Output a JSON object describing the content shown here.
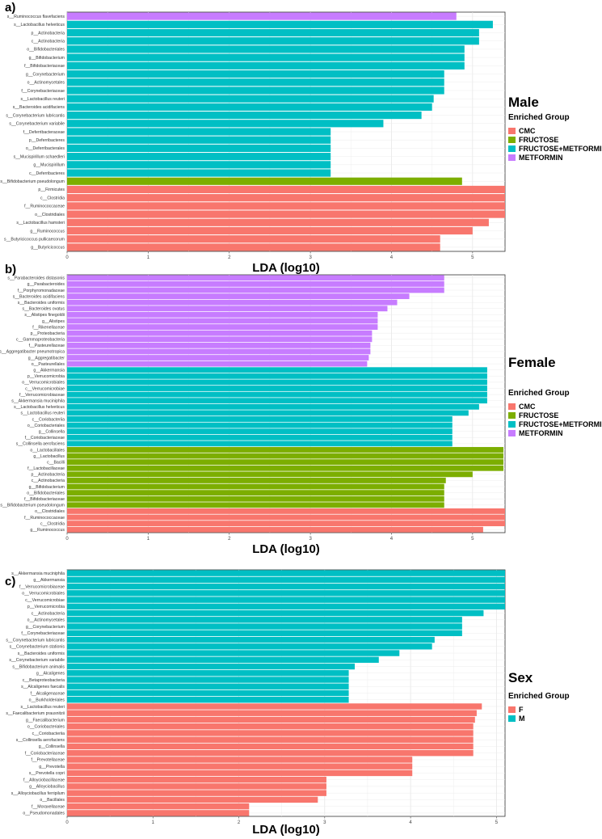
{
  "colors": {
    "CMC": "#F8766D",
    "FRUCTOSE": "#7CAE00",
    "FRUCTOSE+METFORMIN": "#00BFC4",
    "METFORMIN": "#C77CFF",
    "F": "#F8766D",
    "M": "#00BFC4"
  },
  "chart_data": [
    {
      "type": "bar",
      "panel": "a)",
      "orientation": "horizontal",
      "title": "Male",
      "legend_title": "Enriched Group",
      "legend": [
        "CMC",
        "FRUCTOSE",
        "FRUCTOSE+METFORMIN",
        "METFORMIN"
      ],
      "xlabel": "LDA (log10)",
      "xlim": [
        0,
        5.4
      ],
      "xticks": [
        "0",
        "1",
        "2",
        "3",
        "4",
        "5"
      ],
      "bars": [
        {
          "label": "s__Ruminococcus flavefaciens",
          "value": 4.8,
          "group": "METFORMIN"
        },
        {
          "label": "s__Lactobacillus helveticus",
          "value": 5.25,
          "group": "FRUCTOSE+METFORMIN"
        },
        {
          "label": "p__Actinobacteria",
          "value": 5.08,
          "group": "FRUCTOSE+METFORMIN"
        },
        {
          "label": "c__Actinobacteria",
          "value": 5.08,
          "group": "FRUCTOSE+METFORMIN"
        },
        {
          "label": "o__Bifidobacteriales",
          "value": 4.9,
          "group": "FRUCTOSE+METFORMIN"
        },
        {
          "label": "g__Bifidobacterium",
          "value": 4.9,
          "group": "FRUCTOSE+METFORMIN"
        },
        {
          "label": "f__Bifidobacteriaceae",
          "value": 4.9,
          "group": "FRUCTOSE+METFORMIN"
        },
        {
          "label": "g__Corynebacterium",
          "value": 4.65,
          "group": "FRUCTOSE+METFORMIN"
        },
        {
          "label": "o__Actinomycetales",
          "value": 4.65,
          "group": "FRUCTOSE+METFORMIN"
        },
        {
          "label": "f__Corynebacteriaceae",
          "value": 4.65,
          "group": "FRUCTOSE+METFORMIN"
        },
        {
          "label": "s__Lactobacillus reuteri",
          "value": 4.52,
          "group": "FRUCTOSE+METFORMIN"
        },
        {
          "label": "s__Bacteroides acidifaciens",
          "value": 4.5,
          "group": "FRUCTOSE+METFORMIN"
        },
        {
          "label": "s__Corynebacterium lubricantis",
          "value": 4.37,
          "group": "FRUCTOSE+METFORMIN"
        },
        {
          "label": "s__Corynebacterium variabile",
          "value": 3.9,
          "group": "FRUCTOSE+METFORMIN"
        },
        {
          "label": "f__Deferribacteraceae",
          "value": 3.25,
          "group": "FRUCTOSE+METFORMIN"
        },
        {
          "label": "p__Deferribacteres",
          "value": 3.25,
          "group": "FRUCTOSE+METFORMIN"
        },
        {
          "label": "o__Deferribacterales",
          "value": 3.25,
          "group": "FRUCTOSE+METFORMIN"
        },
        {
          "label": "s__Mucispirillum schaedleri",
          "value": 3.25,
          "group": "FRUCTOSE+METFORMIN"
        },
        {
          "label": "g__Mucispirillum",
          "value": 3.25,
          "group": "FRUCTOSE+METFORMIN"
        },
        {
          "label": "c__Deferribacteres",
          "value": 3.25,
          "group": "FRUCTOSE+METFORMIN"
        },
        {
          "label": "s__Bifidobacterium pseudolongum",
          "value": 4.87,
          "group": "FRUCTOSE"
        },
        {
          "label": "p__Firmicutes",
          "value": 5.4,
          "group": "CMC"
        },
        {
          "label": "c__Clostridia",
          "value": 5.4,
          "group": "CMC"
        },
        {
          "label": "f__Ruminococcaceae",
          "value": 5.4,
          "group": "CMC"
        },
        {
          "label": "o__Clostridiales",
          "value": 5.4,
          "group": "CMC"
        },
        {
          "label": "s__Lactobacillus hamsteri",
          "value": 5.2,
          "group": "CMC"
        },
        {
          "label": "g__Ruminococcus",
          "value": 5.0,
          "group": "CMC"
        },
        {
          "label": "s__Butyricicoccus pullicaecorum",
          "value": 4.6,
          "group": "CMC"
        },
        {
          "label": "g__Butyricicoccus",
          "value": 4.6,
          "group": "CMC"
        }
      ]
    },
    {
      "type": "bar",
      "panel": "b)",
      "orientation": "horizontal",
      "title": "Female",
      "legend_title": "Enriched Group",
      "legend": [
        "CMC",
        "FRUCTOSE",
        "FRUCTOSE+METFORMIN",
        "METFORMIN"
      ],
      "xlabel": "LDA (log10)",
      "xlim": [
        0,
        5.4
      ],
      "xticks": [
        "0",
        "1",
        "2",
        "3",
        "4",
        "5"
      ],
      "bars": [
        {
          "label": "s__Parabacteroides distasonis",
          "value": 4.65,
          "group": "METFORMIN"
        },
        {
          "label": "g__Parabacteroides",
          "value": 4.65,
          "group": "METFORMIN"
        },
        {
          "label": "f__Porphyromonadaceae",
          "value": 4.65,
          "group": "METFORMIN"
        },
        {
          "label": "s__Bacteroides acidifaciens",
          "value": 4.22,
          "group": "METFORMIN"
        },
        {
          "label": "s__Bacteroides uniformis",
          "value": 4.07,
          "group": "METFORMIN"
        },
        {
          "label": "s__Bacteroides ovatus",
          "value": 3.95,
          "group": "METFORMIN"
        },
        {
          "label": "s__Alistipes finegoldii",
          "value": 3.83,
          "group": "METFORMIN"
        },
        {
          "label": "g__Alistipes",
          "value": 3.83,
          "group": "METFORMIN"
        },
        {
          "label": "f__Rikenellaceae",
          "value": 3.83,
          "group": "METFORMIN"
        },
        {
          "label": "p__Proteobacteria",
          "value": 3.76,
          "group": "METFORMIN"
        },
        {
          "label": "c__Gammaproteobacteria",
          "value": 3.76,
          "group": "METFORMIN"
        },
        {
          "label": "f__Pasteurellaceae",
          "value": 3.74,
          "group": "METFORMIN"
        },
        {
          "label": "s__Aggregatibacter pneumotropica",
          "value": 3.74,
          "group": "METFORMIN"
        },
        {
          "label": "g__Aggregatibacter",
          "value": 3.72,
          "group": "METFORMIN"
        },
        {
          "label": "o__Pasteurellales",
          "value": 3.7,
          "group": "METFORMIN"
        },
        {
          "label": "g__Akkermansia",
          "value": 5.18,
          "group": "FRUCTOSE+METFORMIN"
        },
        {
          "label": "p__Verrucomicrobia",
          "value": 5.18,
          "group": "FRUCTOSE+METFORMIN"
        },
        {
          "label": "o__Verrucomicrobiales",
          "value": 5.18,
          "group": "FRUCTOSE+METFORMIN"
        },
        {
          "label": "c__Verrucomicrobiae",
          "value": 5.18,
          "group": "FRUCTOSE+METFORMIN"
        },
        {
          "label": "f__Verrucomicrobiaceae",
          "value": 5.18,
          "group": "FRUCTOSE+METFORMIN"
        },
        {
          "label": "s__Akkermansia muciniphila",
          "value": 5.18,
          "group": "FRUCTOSE+METFORMIN"
        },
        {
          "label": "s__Lactobacillus helveticus",
          "value": 5.08,
          "group": "FRUCTOSE+METFORMIN"
        },
        {
          "label": "s__Lactobacillus reuteri",
          "value": 4.95,
          "group": "FRUCTOSE+METFORMIN"
        },
        {
          "label": "c__Coriobacteriia",
          "value": 4.75,
          "group": "FRUCTOSE+METFORMIN"
        },
        {
          "label": "o__Coriobacteriales",
          "value": 4.75,
          "group": "FRUCTOSE+METFORMIN"
        },
        {
          "label": "g__Collinsella",
          "value": 4.75,
          "group": "FRUCTOSE+METFORMIN"
        },
        {
          "label": "f__Coriobacteriaceae",
          "value": 4.75,
          "group": "FRUCTOSE+METFORMIN"
        },
        {
          "label": "s__Collinsella aerofaciens",
          "value": 4.75,
          "group": "FRUCTOSE+METFORMIN"
        },
        {
          "label": "o__Lactobacillales",
          "value": 5.38,
          "group": "FRUCTOSE"
        },
        {
          "label": "g__Lactobacillus",
          "value": 5.38,
          "group": "FRUCTOSE"
        },
        {
          "label": "c__Bacilli",
          "value": 5.38,
          "group": "FRUCTOSE"
        },
        {
          "label": "f__Lactobacillaceae",
          "value": 5.38,
          "group": "FRUCTOSE"
        },
        {
          "label": "p__Actinobacteria",
          "value": 5.0,
          "group": "FRUCTOSE"
        },
        {
          "label": "c__Actinobacteria",
          "value": 4.67,
          "group": "FRUCTOSE"
        },
        {
          "label": "g__Bifidobacterium",
          "value": 4.65,
          "group": "FRUCTOSE"
        },
        {
          "label": "o__Bifidobacteriales",
          "value": 4.65,
          "group": "FRUCTOSE"
        },
        {
          "label": "f__Bifidobacteriaceae",
          "value": 4.65,
          "group": "FRUCTOSE"
        },
        {
          "label": "s__Bifidobacterium pseudolongum",
          "value": 4.65,
          "group": "FRUCTOSE"
        },
        {
          "label": "o__Clostridiales",
          "value": 5.4,
          "group": "CMC"
        },
        {
          "label": "f__Ruminococcaceae",
          "value": 5.4,
          "group": "CMC"
        },
        {
          "label": "c__Clostridia",
          "value": 5.4,
          "group": "CMC"
        },
        {
          "label": "g__Ruminococcus",
          "value": 5.13,
          "group": "CMC"
        }
      ]
    },
    {
      "type": "bar",
      "panel": "c)",
      "orientation": "horizontal",
      "title": "Sex",
      "legend_title": "Enriched Group",
      "legend": [
        "F",
        "M"
      ],
      "xlabel": "LDA (log10)",
      "xlim": [
        0,
        5.1
      ],
      "xticks": [
        "0",
        "1",
        "2",
        "3",
        "4",
        "5"
      ],
      "bars": [
        {
          "label": "s__Akkermansia muciniphila",
          "value": 5.1,
          "group": "M"
        },
        {
          "label": "g__Akkermansia",
          "value": 5.1,
          "group": "M"
        },
        {
          "label": "f__Verrucomicrobiaceae",
          "value": 5.1,
          "group": "M"
        },
        {
          "label": "o__Verrucomicrobiales",
          "value": 5.1,
          "group": "M"
        },
        {
          "label": "c__Verrucomicrobiae",
          "value": 5.1,
          "group": "M"
        },
        {
          "label": "p__Verrucomicrobia",
          "value": 5.1,
          "group": "M"
        },
        {
          "label": "c__Actinobacteria",
          "value": 4.85,
          "group": "M"
        },
        {
          "label": "o__Actinomycetales",
          "value": 4.6,
          "group": "M"
        },
        {
          "label": "g__Corynebacterium",
          "value": 4.6,
          "group": "M"
        },
        {
          "label": "f__Corynebacteriaceae",
          "value": 4.6,
          "group": "M"
        },
        {
          "label": "s__Corynebacterium lubricantis",
          "value": 4.28,
          "group": "M"
        },
        {
          "label": "s__Corynebacterium stationis",
          "value": 4.25,
          "group": "M"
        },
        {
          "label": "s__Bacteroides uniformis",
          "value": 3.87,
          "group": "M"
        },
        {
          "label": "s__Corynebacterium variabile",
          "value": 3.63,
          "group": "M"
        },
        {
          "label": "s__Bifidobacterium animalis",
          "value": 3.35,
          "group": "M"
        },
        {
          "label": "g__Alcaligenes",
          "value": 3.28,
          "group": "M"
        },
        {
          "label": "c__Betaproteobacteria",
          "value": 3.28,
          "group": "M"
        },
        {
          "label": "s__Alcaligenes faecalis",
          "value": 3.28,
          "group": "M"
        },
        {
          "label": "f__Alcaligenaceae",
          "value": 3.28,
          "group": "M"
        },
        {
          "label": "o__Burkholderiales",
          "value": 3.28,
          "group": "M"
        },
        {
          "label": "s__Lactobacillus reuteri",
          "value": 4.83,
          "group": "F"
        },
        {
          "label": "s__Faecalibacterium prausnitzii",
          "value": 4.77,
          "group": "F"
        },
        {
          "label": "g__Faecalibacterium",
          "value": 4.75,
          "group": "F"
        },
        {
          "label": "o__Coriobacteriales",
          "value": 4.73,
          "group": "F"
        },
        {
          "label": "c__Coriobacteriia",
          "value": 4.73,
          "group": "F"
        },
        {
          "label": "s__Collinsella aerofaciens",
          "value": 4.73,
          "group": "F"
        },
        {
          "label": "g__Collinsella",
          "value": 4.73,
          "group": "F"
        },
        {
          "label": "f__Coriobacteriaceae",
          "value": 4.73,
          "group": "F"
        },
        {
          "label": "f__Prevotellaceae",
          "value": 4.02,
          "group": "F"
        },
        {
          "label": "g__Prevotella",
          "value": 4.02,
          "group": "F"
        },
        {
          "label": "s__Prevotella copri",
          "value": 4.02,
          "group": "F"
        },
        {
          "label": "f__Alloyciobacillaceae",
          "value": 3.02,
          "group": "F"
        },
        {
          "label": "g__Alloyciobacillus",
          "value": 3.02,
          "group": "F"
        },
        {
          "label": "s__Alloyciobacillus ferripilum",
          "value": 3.02,
          "group": "F"
        },
        {
          "label": "o__Bacillales",
          "value": 2.92,
          "group": "F"
        },
        {
          "label": "f__Moraxellaceae",
          "value": 2.12,
          "group": "F"
        },
        {
          "label": "o__Pseudomonadales",
          "value": 2.12,
          "group": "F"
        }
      ]
    }
  ]
}
